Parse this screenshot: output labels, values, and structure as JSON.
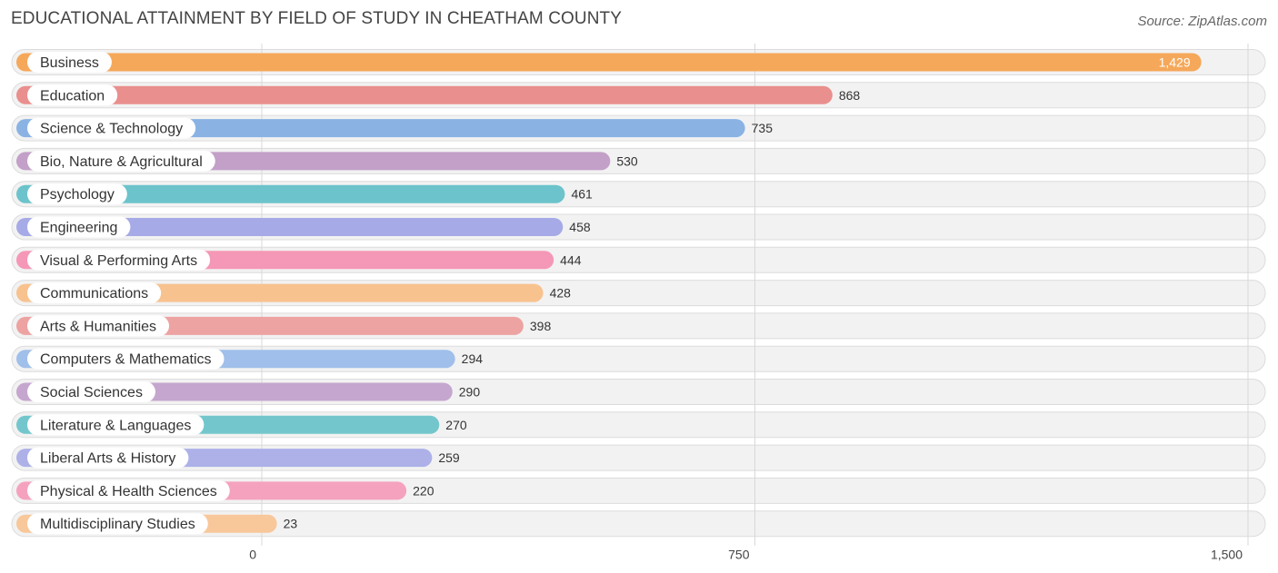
{
  "header": {
    "title": "EDUCATIONAL ATTAINMENT BY FIELD OF STUDY IN CHEATHAM COUNTY",
    "source": "Source: ZipAtlas.com"
  },
  "chart_data": {
    "type": "bar",
    "orientation": "horizontal",
    "title": "EDUCATIONAL ATTAINMENT BY FIELD OF STUDY IN CHEATHAM COUNTY",
    "xlabel": "",
    "ylabel": "",
    "xlim": [
      0,
      1500
    ],
    "ticks": [
      0,
      750,
      1500
    ],
    "tick_labels": [
      "0",
      "750",
      "1,500"
    ],
    "grid": true,
    "categories": [
      "Business",
      "Education",
      "Science & Technology",
      "Bio, Nature & Agricultural",
      "Psychology",
      "Engineering",
      "Visual & Performing Arts",
      "Communications",
      "Arts & Humanities",
      "Computers & Mathematics",
      "Social Sciences",
      "Literature & Languages",
      "Liberal Arts & History",
      "Physical & Health Sciences",
      "Multidisciplinary Studies"
    ],
    "values": [
      1429,
      868,
      735,
      530,
      461,
      458,
      444,
      428,
      398,
      294,
      290,
      270,
      259,
      220,
      23
    ],
    "value_labels": [
      "1,429",
      "868",
      "735",
      "530",
      "461",
      "458",
      "444",
      "428",
      "398",
      "294",
      "290",
      "270",
      "259",
      "220",
      "23"
    ],
    "colors": [
      "#f5a85a",
      "#e98f8d",
      "#8ab3e4",
      "#c3a0c8",
      "#6cc3cb",
      "#a6aae6",
      "#f597b6",
      "#f8c28f",
      "#eda3a2",
      "#a0bfea",
      "#c5a6cf",
      "#73c7cc",
      "#adb1e8",
      "#f5a2bf",
      "#f8c79a"
    ]
  }
}
